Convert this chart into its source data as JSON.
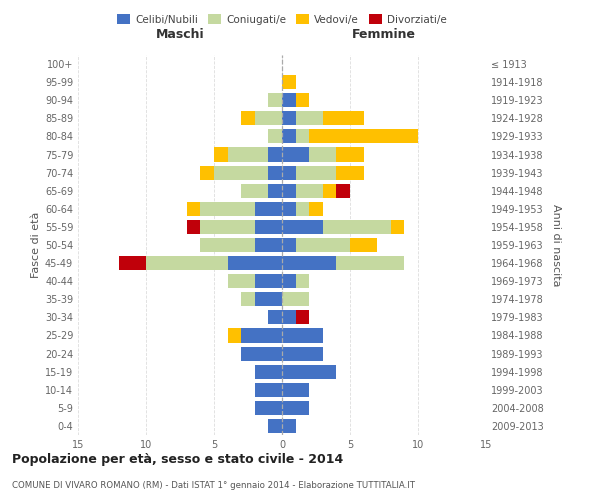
{
  "age_groups": [
    "0-4",
    "5-9",
    "10-14",
    "15-19",
    "20-24",
    "25-29",
    "30-34",
    "35-39",
    "40-44",
    "45-49",
    "50-54",
    "55-59",
    "60-64",
    "65-69",
    "70-74",
    "75-79",
    "80-84",
    "85-89",
    "90-94",
    "95-99",
    "100+"
  ],
  "birth_years": [
    "2009-2013",
    "2004-2008",
    "1999-2003",
    "1994-1998",
    "1989-1993",
    "1984-1988",
    "1979-1983",
    "1974-1978",
    "1969-1973",
    "1964-1968",
    "1959-1963",
    "1954-1958",
    "1949-1953",
    "1944-1948",
    "1939-1943",
    "1934-1938",
    "1929-1933",
    "1924-1928",
    "1919-1923",
    "1914-1918",
    "≤ 1913"
  ],
  "maschi": {
    "celibi": [
      1,
      2,
      2,
      2,
      3,
      3,
      1,
      2,
      2,
      4,
      2,
      2,
      2,
      1,
      1,
      1,
      0,
      0,
      0,
      0,
      0
    ],
    "coniugati": [
      0,
      0,
      0,
      0,
      0,
      0,
      0,
      1,
      2,
      6,
      4,
      4,
      4,
      2,
      4,
      3,
      1,
      2,
      1,
      0,
      0
    ],
    "vedovi": [
      0,
      0,
      0,
      0,
      0,
      1,
      0,
      0,
      0,
      0,
      0,
      0,
      1,
      0,
      1,
      1,
      0,
      1,
      0,
      0,
      0
    ],
    "divorziati": [
      0,
      0,
      0,
      0,
      0,
      0,
      0,
      0,
      0,
      2,
      0,
      1,
      0,
      0,
      0,
      0,
      0,
      0,
      0,
      0,
      0
    ]
  },
  "femmine": {
    "nubili": [
      1,
      2,
      2,
      4,
      3,
      3,
      1,
      0,
      1,
      4,
      1,
      3,
      1,
      1,
      1,
      2,
      1,
      1,
      1,
      0,
      0
    ],
    "coniugate": [
      0,
      0,
      0,
      0,
      0,
      0,
      0,
      2,
      1,
      5,
      4,
      5,
      1,
      2,
      3,
      2,
      1,
      2,
      0,
      0,
      0
    ],
    "vedove": [
      0,
      0,
      0,
      0,
      0,
      0,
      0,
      0,
      0,
      0,
      2,
      1,
      1,
      1,
      2,
      2,
      8,
      3,
      1,
      1,
      0
    ],
    "divorziate": [
      0,
      0,
      0,
      0,
      0,
      0,
      1,
      0,
      0,
      0,
      0,
      0,
      0,
      1,
      0,
      0,
      0,
      0,
      0,
      0,
      0
    ]
  },
  "colors": {
    "celibi": "#4472c4",
    "coniugati": "#c5d9a0",
    "vedovi": "#ffc000",
    "divorziati": "#c0000a"
  },
  "title": "Popolazione per età, sesso e stato civile - 2014",
  "subtitle": "COMUNE DI VIVARO ROMANO (RM) - Dati ISTAT 1° gennaio 2014 - Elaborazione TUTTITALIA.IT",
  "ylabel_left": "Fasce di età",
  "ylabel_right": "Anni di nascita",
  "xlabel_maschi": "Maschi",
  "xlabel_femmine": "Femmine",
  "xlim": 15,
  "bg_color": "#ffffff",
  "grid_color": "#cccccc"
}
